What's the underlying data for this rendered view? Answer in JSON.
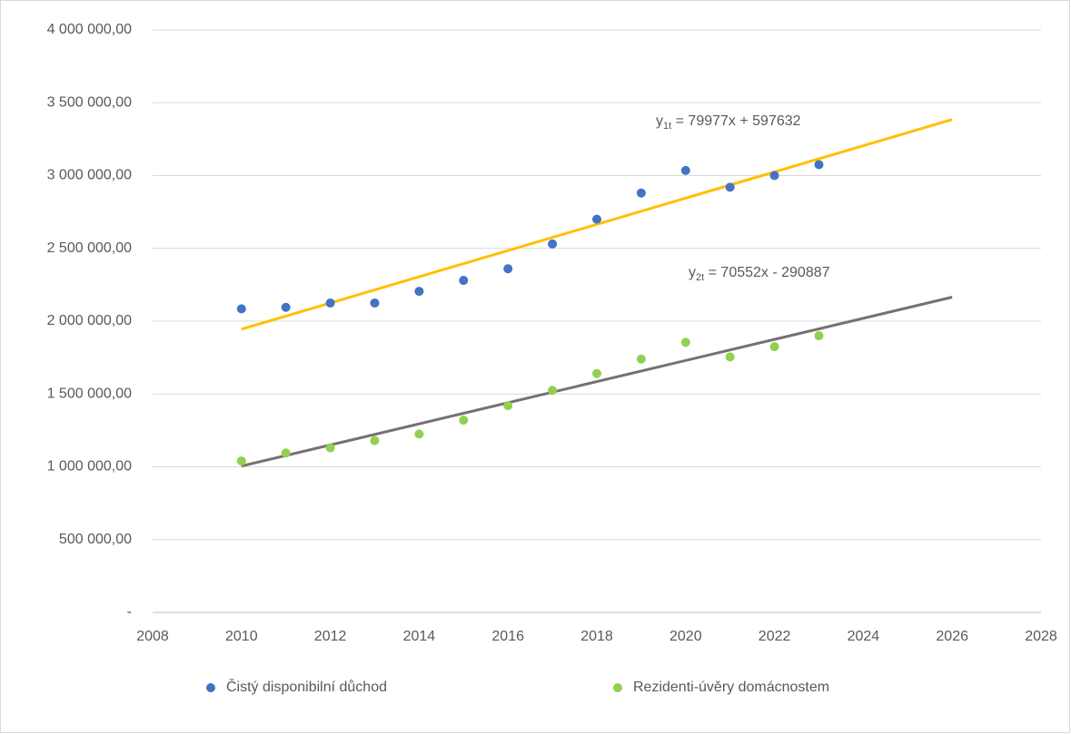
{
  "chart_data": {
    "type": "scatter",
    "xlim": [
      2008,
      2028
    ],
    "xticks": [
      2008,
      2010,
      2012,
      2014,
      2016,
      2018,
      2020,
      2022,
      2024,
      2026,
      2028
    ],
    "ylim": [
      0,
      4000000
    ],
    "yticks": [
      {
        "value": 0,
        "label": "-"
      },
      {
        "value": 500000,
        "label": "500 000,00"
      },
      {
        "value": 1000000,
        "label": "1 000 000,00"
      },
      {
        "value": 1500000,
        "label": "1 500 000,00"
      },
      {
        "value": 2000000,
        "label": "2 000 000,00"
      },
      {
        "value": 2500000,
        "label": "2 500 000,00"
      },
      {
        "value": 3000000,
        "label": "3 000 000,00"
      },
      {
        "value": 3500000,
        "label": "3 500 000,00"
      },
      {
        "value": 4000000,
        "label": "4 000 000,00"
      }
    ],
    "grid": true,
    "legend": "bottom",
    "x": [
      2010,
      2011,
      2012,
      2013,
      2014,
      2015,
      2016,
      2017,
      2018,
      2019,
      2020,
      2021,
      2022,
      2023
    ],
    "series": [
      {
        "name": "Čistý disponibilní důchod",
        "color": "#4472c4",
        "values": [
          2085000,
          2095000,
          2125000,
          2125000,
          2205000,
          2280000,
          2360000,
          2530000,
          2700000,
          2880000,
          3035000,
          2920000,
          3000000,
          3075000
        ]
      },
      {
        "name": "Rezidenti-úvěry domácnostem",
        "color": "#92d050",
        "values": [
          1040000,
          1095000,
          1130000,
          1180000,
          1225000,
          1320000,
          1420000,
          1525000,
          1640000,
          1740000,
          1855000,
          1755000,
          1825000,
          1900000
        ]
      }
    ],
    "trendlines": [
      {
        "color": "#ffc000",
        "x": [
          2010,
          2026
        ],
        "values": [
          1945000,
          3385000
        ],
        "equation": {
          "base": "y",
          "sub": "1t",
          "text": " = 79977x + 597632"
        }
      },
      {
        "color": "#767171",
        "x": [
          2010,
          2026
        ],
        "values": [
          1005000,
          2165000
        ],
        "equation": {
          "base": "y",
          "sub": "2t",
          "text": " = 70552x - 290887"
        }
      }
    ]
  }
}
